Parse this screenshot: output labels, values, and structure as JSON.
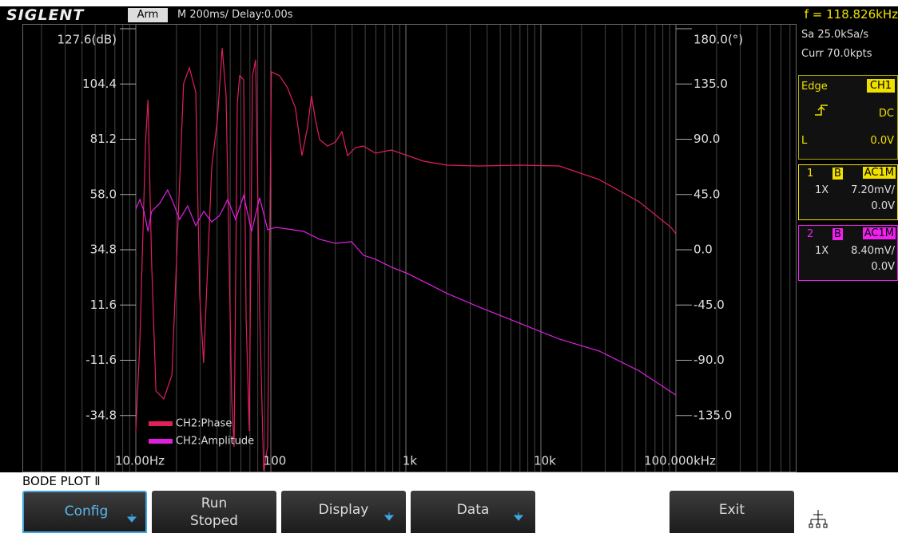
{
  "header": {
    "brand": "SIGLENT",
    "status": "Arm",
    "timebase": "M 200ms/",
    "delay": "Delay:0.00s",
    "frequency": "f = 118.826kHz"
  },
  "acquisition": {
    "sample_rate": "Sa 25.0kSa/s",
    "memory": "Curr 70.0kpts"
  },
  "trigger": {
    "type": "Edge",
    "source": "CH1",
    "coupling": "DC",
    "level_label": "L",
    "level": "0.0V"
  },
  "channels": [
    {
      "number": "1",
      "bandwidth": "B",
      "coupling": "AC1M",
      "probe": "1X",
      "scale": "7.20mV/",
      "offset": "0.0V",
      "color": "#f0e000"
    },
    {
      "number": "2",
      "bandwidth": "B",
      "coupling": "AC1M",
      "probe": "1X",
      "scale": "8.40mV/",
      "offset": "0.0V",
      "color": "#f020f0"
    }
  ],
  "menu_title": "BODE PLOT Ⅱ",
  "softkeys": [
    {
      "lines": [
        "Config"
      ],
      "submenu": true,
      "selected": true
    },
    {
      "lines": [
        "Run",
        "Stoped"
      ],
      "submenu": false,
      "selected": false
    },
    {
      "lines": [
        "Display"
      ],
      "submenu": true,
      "selected": false
    },
    {
      "lines": [
        "Data"
      ],
      "submenu": true,
      "selected": false
    },
    {
      "lines": [
        "Exit"
      ],
      "submenu": false,
      "selected": false
    }
  ],
  "chart_data": {
    "type": "line",
    "xscale": "log",
    "legend": "lower left",
    "xlim": [
      10,
      100000
    ],
    "xticks": [
      {
        "value": 10,
        "label": "10.00Hz"
      },
      100,
      {
        "value": 1000,
        "label": "1k"
      },
      {
        "value": 10000,
        "label": "10k"
      },
      {
        "value": 100000,
        "label": "100.000kHz"
      }
    ],
    "ylim": [
      -58,
      127.6
    ],
    "yticks": [
      {
        "value": 127.6,
        "label": "127.6(dB)"
      },
      104.4,
      81.2,
      {
        "value": 58,
        "label": "58.0"
      },
      34.8,
      11.6,
      -11.6,
      -34.8
    ],
    "y2lim": [
      -180,
      180
    ],
    "y2ticks": [
      {
        "value": 180,
        "label": "180.0(°)"
      },
      {
        "value": 135,
        "label": "135.0"
      },
      {
        "value": 90,
        "label": "90.0"
      },
      {
        "value": 45,
        "label": "45.0"
      },
      {
        "value": 0,
        "label": "0.0"
      },
      {
        "value": -45,
        "label": "-45.0"
      },
      {
        "value": -90,
        "label": "-90.0"
      },
      {
        "value": -135,
        "label": "-135.0"
      }
    ],
    "series": [
      {
        "name": "CH2:Phase",
        "color": "#e0205a",
        "axis": "y2",
        "x": [
          10,
          10.7,
          11.8,
          12.3,
          13.1,
          14.1,
          16.1,
          18.5,
          22.6,
          24.9,
          27.8,
          29.7,
          31.8,
          36.5,
          40.2,
          43.6,
          46.6,
          51.3,
          53.4,
          56.4,
          58.8,
          62.9,
          65.6,
          69.2,
          73.1,
          77.2,
          82.6,
          88.5,
          94.7,
          101,
          116,
          133,
          152,
          170,
          187,
          200,
          214,
          230,
          263,
          301,
          336,
          370,
          424,
          485,
          596,
          782,
          1030,
          1350,
          2030,
          3500,
          6920,
          13700,
          27000,
          53500,
          92000,
          100000
        ],
        "values": [
          -147.5,
          -76,
          86.4,
          122.2,
          -11,
          -115,
          -121.5,
          -102,
          135.2,
          148.2,
          128.7,
          -37,
          -92.3,
          66.9,
          105.9,
          164.4,
          125.4,
          -121.5,
          -160.5,
          118.9,
          141.7,
          138.4,
          -56.5,
          -147.5,
          141.7,
          154.7,
          -50,
          -180,
          -160.5,
          144.9,
          141.7,
          131.9,
          115.7,
          76.7,
          99.4,
          125.4,
          105.9,
          89.7,
          84.5,
          87.7,
          96.2,
          76.7,
          83.2,
          84.5,
          78.6,
          81.2,
          76.7,
          72.1,
          68.9,
          68.2,
          68.9,
          68.2,
          57.2,
          39,
          18.2,
          13
        ]
      },
      {
        "name": "CH2:Amplitude",
        "color": "#e020e0",
        "axis": "y",
        "x": [
          10,
          10.7,
          11.5,
          12.3,
          13.1,
          15,
          17.2,
          18.5,
          21.1,
          24.2,
          27.8,
          31.8,
          36.5,
          41.8,
          47.9,
          54.9,
          62.9,
          72.1,
          82.6,
          94.7,
          109,
          133,
          175,
          230,
          301,
          396,
          485,
          596,
          782,
          1030,
          2030,
          3500,
          6920,
          13700,
          27000,
          53500,
          100000
        ],
        "values": [
          51.9,
          55.9,
          50.9,
          42.5,
          50.9,
          54.2,
          59.9,
          55.9,
          47.5,
          53.2,
          44.9,
          50.9,
          46.5,
          49.2,
          55.9,
          47.5,
          57.6,
          42.5,
          56.6,
          43.2,
          44.2,
          43.5,
          42.5,
          39.2,
          37.5,
          38.2,
          32.5,
          30.8,
          27.5,
          24.8,
          16.4,
          10.7,
          4,
          -2.7,
          -7.7,
          -16.1,
          -26.2
        ]
      }
    ]
  }
}
